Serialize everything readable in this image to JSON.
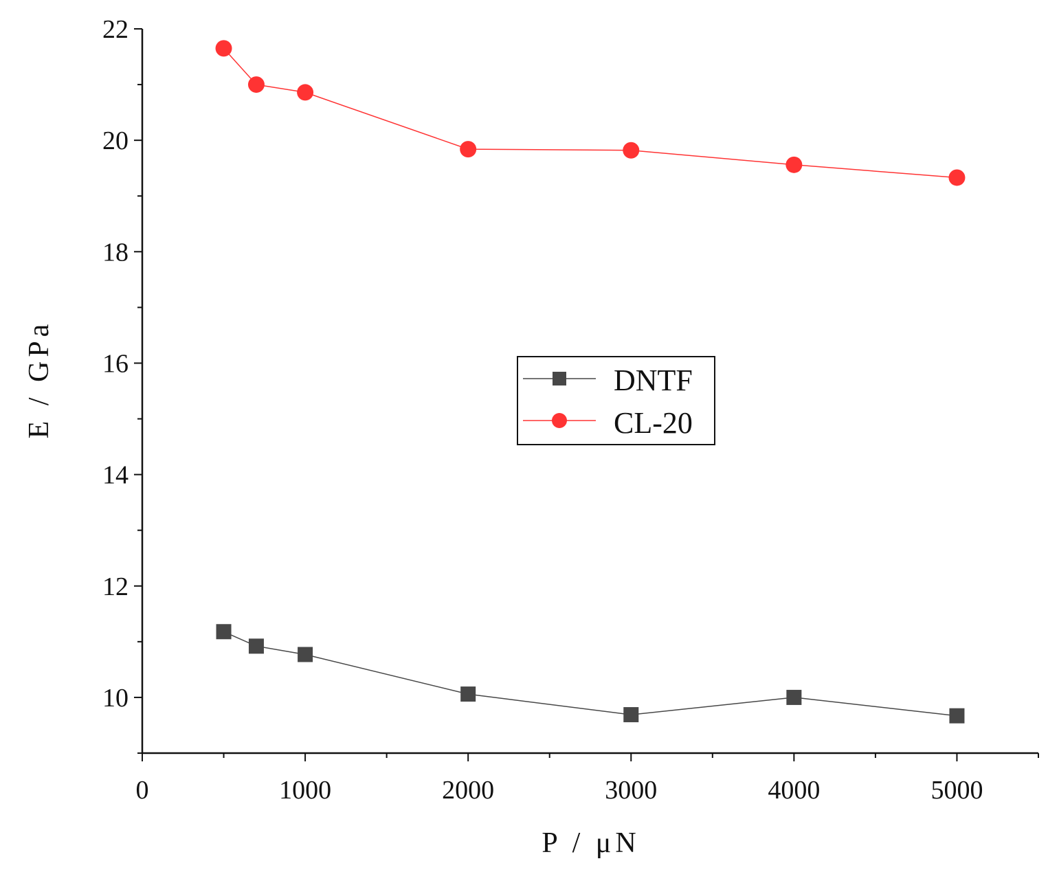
{
  "chart_data": {
    "type": "line",
    "title": "",
    "xlabel": "P / μN",
    "ylabel": "E / GPa",
    "xlim": [
      0,
      5500
    ],
    "ylim": [
      9,
      22
    ],
    "x_ticks": [
      0,
      1000,
      2000,
      3000,
      4000,
      5000
    ],
    "x_tick_labels": [
      "0",
      "1000",
      "2000",
      "3000",
      "4000",
      "5000"
    ],
    "y_ticks": [
      10,
      12,
      14,
      16,
      18,
      20,
      22
    ],
    "y_tick_labels": [
      "10",
      "12",
      "14",
      "16",
      "18",
      "20",
      "22"
    ],
    "grid": false,
    "legend_position": "center",
    "x": [
      500,
      700,
      1000,
      2000,
      3000,
      4000,
      5000
    ],
    "series": [
      {
        "name": "DNTF",
        "marker": "square",
        "color": "#474747",
        "values": [
          11.18,
          10.92,
          10.77,
          10.06,
          9.69,
          10.0,
          9.67
        ]
      },
      {
        "name": "CL-20",
        "marker": "circle",
        "color": "#ff3333",
        "values": [
          21.65,
          21.0,
          20.86,
          19.84,
          19.82,
          19.56,
          19.33
        ]
      }
    ]
  }
}
